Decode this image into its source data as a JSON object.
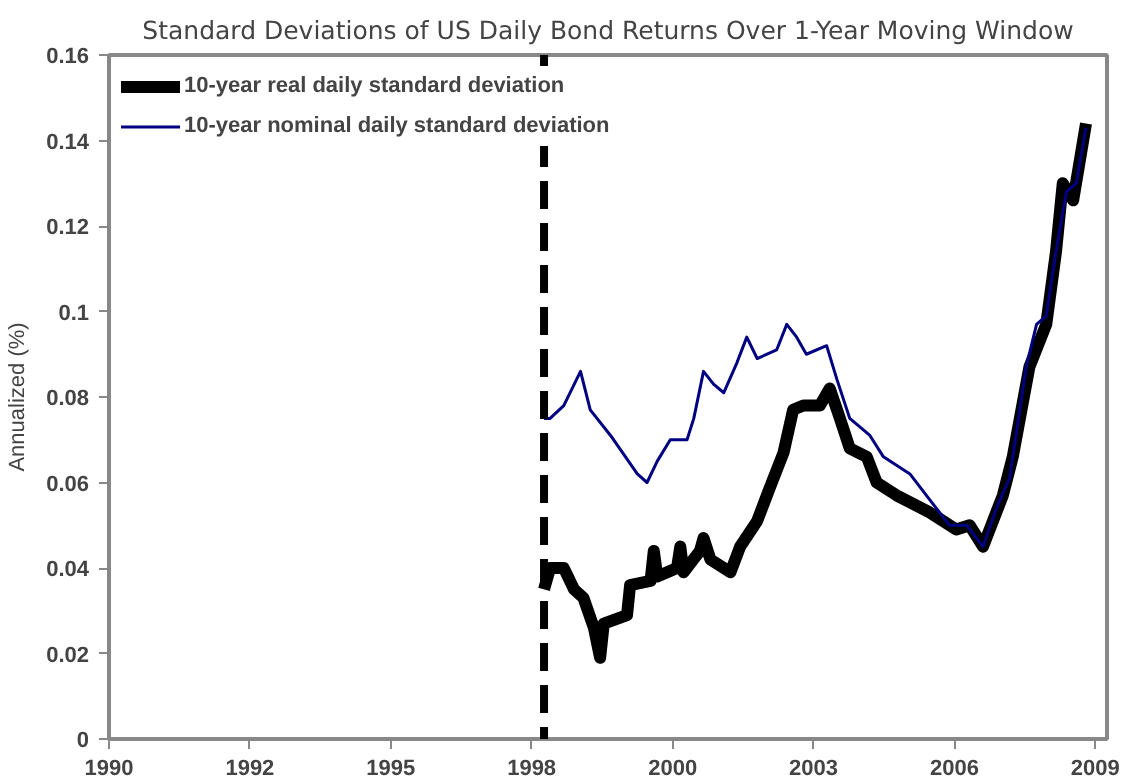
{
  "chart_data": {
    "type": "line",
    "title": "Standard Deviations of US Daily Bond Returns Over 1-Year Moving Window",
    "ylabel": "Annualized (%)",
    "xlim": [
      "1990-01-01",
      "2009-05-25"
    ],
    "xticks": [
      {
        "value": "1990-01-01",
        "label": "1990"
      },
      {
        "value": "1992-09-27",
        "label": "1992"
      },
      {
        "value": "1995-06-24",
        "label": "1995"
      },
      {
        "value": "1998-03-20",
        "label": "1998"
      },
      {
        "value": "2000-12-15",
        "label": "2000"
      },
      {
        "value": "2003-09-11",
        "label": "2003"
      },
      {
        "value": "2006-06-07",
        "label": "2006"
      },
      {
        "value": "2009-03-03",
        "label": "2009"
      }
    ],
    "ylim": [
      0,
      0.16
    ],
    "yticks": [
      0,
      0.02,
      0.04,
      0.06,
      0.08,
      0.1,
      0.12,
      0.14,
      0.16
    ],
    "grid": false,
    "legend": "top left",
    "line_style": "solid",
    "ref_lines": [
      {
        "axis": "x",
        "value": "1998-06-16",
        "color": "#000000",
        "line_style": "dashed"
      }
    ],
    "series": [
      {
        "name": "10-year real daily standard deviation",
        "color": "#000000",
        "x": [
          "1998-06-16",
          "1998-07-29",
          "1998-11-03",
          "1999-01-15",
          "1999-03-23",
          "1999-06-05",
          "1999-07-19",
          "1999-08-14",
          "2000-01-26",
          "2000-02-17",
          "2000-07-11",
          "2000-08-03",
          "2000-08-28",
          "2001-01-15",
          "2001-02-07",
          "2001-03-02",
          "2001-06-27",
          "2001-07-22",
          "2001-09-09",
          "2002-01-29",
          "2002-04-08",
          "2002-08-07",
          "2002-11-07",
          "2003-02-10",
          "2003-04-19",
          "2003-07-01",
          "2003-10-26",
          "2004-01-04",
          "2004-03-16",
          "2004-05-25",
          "2004-09-23",
          "2004-12-02",
          "2005-04-22",
          "2005-12-13",
          "2006-06-20",
          "2006-09-23",
          "2006-12-27",
          "2007-05-17",
          "2007-07-26",
          "2007-11-21",
          "2008-03-20",
          "2008-05-28",
          "2008-07-15",
          "2008-09-27",
          "2008-12-27"
        ],
        "values": [
          0.035,
          0.04,
          0.04,
          0.035,
          0.033,
          0.026,
          0.019,
          0.027,
          0.029,
          0.036,
          0.037,
          0.044,
          0.038,
          0.04,
          0.045,
          0.039,
          0.044,
          0.047,
          0.042,
          0.039,
          0.045,
          0.051,
          0.059,
          0.067,
          0.077,
          0.078,
          0.078,
          0.082,
          0.075,
          0.068,
          0.066,
          0.06,
          0.057,
          0.053,
          0.049,
          0.05,
          0.045,
          0.057,
          0.066,
          0.087,
          0.097,
          0.114,
          0.13,
          0.126,
          0.144
        ]
      },
      {
        "name": "10-year nominal daily standard deviation",
        "color": "#000080",
        "x": [
          "1998-06-16",
          "1998-07-29",
          "1998-11-03",
          "1999-03-02",
          "1999-05-10",
          "1999-10-01",
          "2000-04-08",
          "2000-06-16",
          "2000-08-28",
          "2000-11-28",
          "2001-03-27",
          "2001-05-14",
          "2001-07-22",
          "2001-10-01",
          "2001-12-13",
          "2002-03-16",
          "2002-05-25",
          "2002-08-07",
          "2002-12-23",
          "2003-03-05",
          "2003-05-14",
          "2003-07-22",
          "2003-12-13",
          "2004-02-25",
          "2004-05-25",
          "2004-10-15",
          "2005-01-19",
          "2005-07-26",
          "2005-12-13",
          "2006-05-03",
          "2006-09-02",
          "2006-12-27",
          "2007-04-01",
          "2007-07-04",
          "2007-10-29",
          "2008-01-11",
          "2008-03-20",
          "2008-05-28",
          "2008-08-10",
          "2008-10-19",
          "2008-12-27"
        ],
        "values": [
          0.075,
          0.075,
          0.078,
          0.086,
          0.077,
          0.071,
          0.062,
          0.06,
          0.065,
          0.07,
          0.07,
          0.075,
          0.086,
          0.083,
          0.081,
          0.088,
          0.094,
          0.089,
          0.091,
          0.097,
          0.094,
          0.09,
          0.092,
          0.084,
          0.075,
          0.071,
          0.066,
          0.062,
          0.056,
          0.05,
          0.05,
          0.045,
          0.054,
          0.061,
          0.087,
          0.097,
          0.099,
          0.114,
          0.128,
          0.13,
          0.143
        ]
      }
    ]
  }
}
